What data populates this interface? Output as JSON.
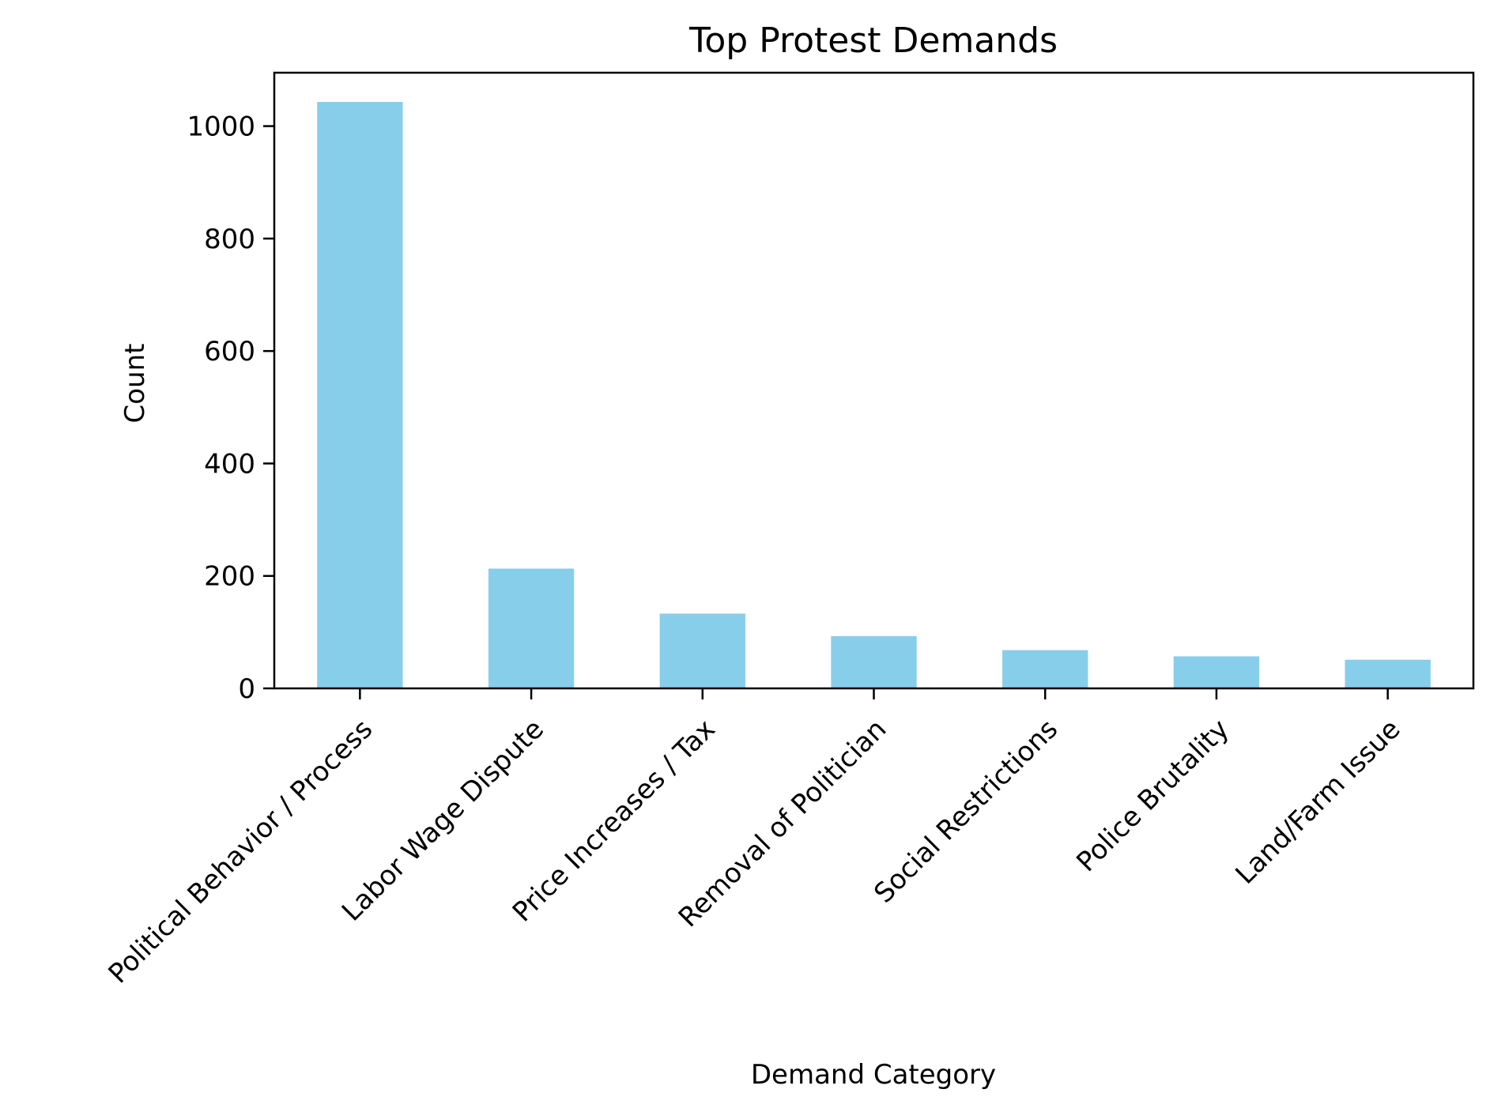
{
  "chart_data": {
    "type": "bar",
    "title": "Top Protest Demands",
    "xlabel": "Demand Category",
    "ylabel": "Count",
    "categories": [
      "Political Behavior / Process",
      "Labor Wage Dispute",
      "Price Increases / Tax",
      "Removal of Politician",
      "Social Restrictions",
      "Police Brutality",
      "Land/Farm Issue"
    ],
    "values": [
      1043,
      213,
      133,
      93,
      68,
      57,
      51
    ],
    "ylim": [
      0,
      1095
    ],
    "yticks": [
      0,
      200,
      400,
      600,
      800,
      1000
    ],
    "bar_color": "#87ceeb",
    "grid": false,
    "legend": "none"
  }
}
